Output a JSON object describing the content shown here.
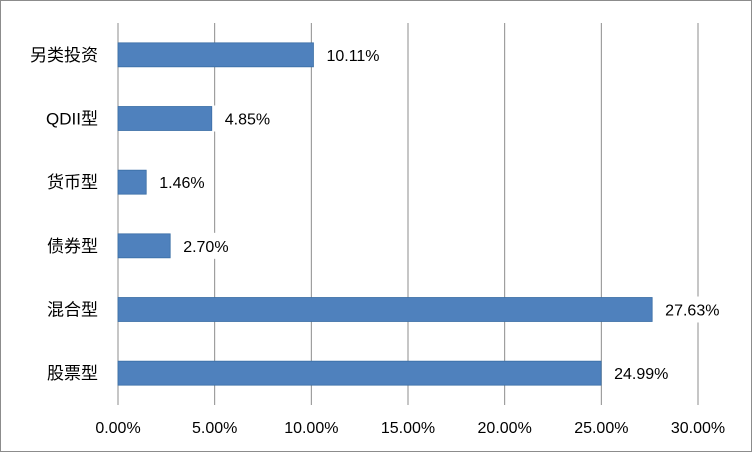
{
  "chart_data": {
    "type": "bar",
    "orientation": "horizontal",
    "categories": [
      "股票型",
      "混合型",
      "债券型",
      "货币型",
      "QDII型",
      "另类投资"
    ],
    "values": [
      24.99,
      27.63,
      2.7,
      1.46,
      4.85,
      10.11
    ],
    "value_labels": [
      "24.99%",
      "27.63%",
      "2.70%",
      "1.46%",
      "4.85%",
      "10.11%"
    ],
    "x_ticks": [
      "0.00%",
      "5.00%",
      "10.00%",
      "15.00%",
      "20.00%",
      "25.00%",
      "30.00%"
    ],
    "xlim": [
      0,
      30
    ],
    "grid": "vertical",
    "legend": "none",
    "title": "",
    "xlabel": "",
    "ylabel": "",
    "colors": {
      "bar": "#4f81bd",
      "bar_edge": "#3a6ea5",
      "grid": "#8c8c8c",
      "label_bg": "#ffffff"
    }
  }
}
